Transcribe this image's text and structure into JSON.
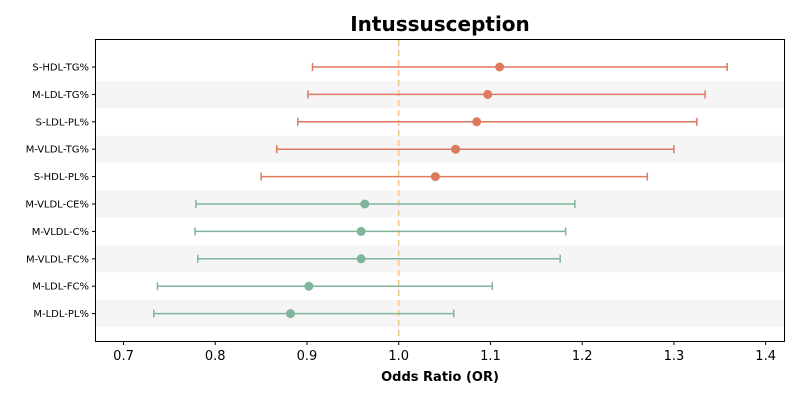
{
  "chart_data": {
    "type": "forest",
    "title": "Intussusception",
    "xlabel": "Odds Ratio (OR)",
    "xlim": [
      0.67,
      1.42
    ],
    "xticks": [
      0.7,
      0.8,
      0.9,
      1.0,
      1.1,
      1.2,
      1.3,
      1.4
    ],
    "xtick_labels": [
      "0.7",
      "0.8",
      "0.9",
      "1.0",
      "1.1",
      "1.2",
      "1.3",
      "1.4"
    ],
    "reference_line": 1.0,
    "colors": {
      "above_one": "#dd7a5e",
      "below_one": "#7fb59a",
      "reference": "#f3c98b",
      "stripe": "#f5f5f5"
    },
    "rows": [
      {
        "label": "S-HDL-TG%",
        "or": 1.11,
        "ci_low": 0.906,
        "ci_high": 1.358
      },
      {
        "label": "M-LDL-TG%",
        "or": 1.097,
        "ci_low": 0.901,
        "ci_high": 1.334
      },
      {
        "label": "S-LDL-PL%",
        "or": 1.085,
        "ci_low": 0.89,
        "ci_high": 1.325
      },
      {
        "label": "M-VLDL-TG%",
        "or": 1.062,
        "ci_low": 0.867,
        "ci_high": 1.3
      },
      {
        "label": "S-HDL-PL%",
        "or": 1.04,
        "ci_low": 0.85,
        "ci_high": 1.271
      },
      {
        "label": "M-VLDL-CE%",
        "or": 0.963,
        "ci_low": 0.779,
        "ci_high": 1.192
      },
      {
        "label": "M-VLDL-C%",
        "or": 0.959,
        "ci_low": 0.778,
        "ci_high": 1.182
      },
      {
        "label": "M-VLDL-FC%",
        "or": 0.959,
        "ci_low": 0.781,
        "ci_high": 1.176
      },
      {
        "label": "M-LDL-FC%",
        "or": 0.902,
        "ci_low": 0.737,
        "ci_high": 1.102
      },
      {
        "label": "M-LDL-PL%",
        "or": 0.882,
        "ci_low": 0.733,
        "ci_high": 1.06
      }
    ]
  }
}
